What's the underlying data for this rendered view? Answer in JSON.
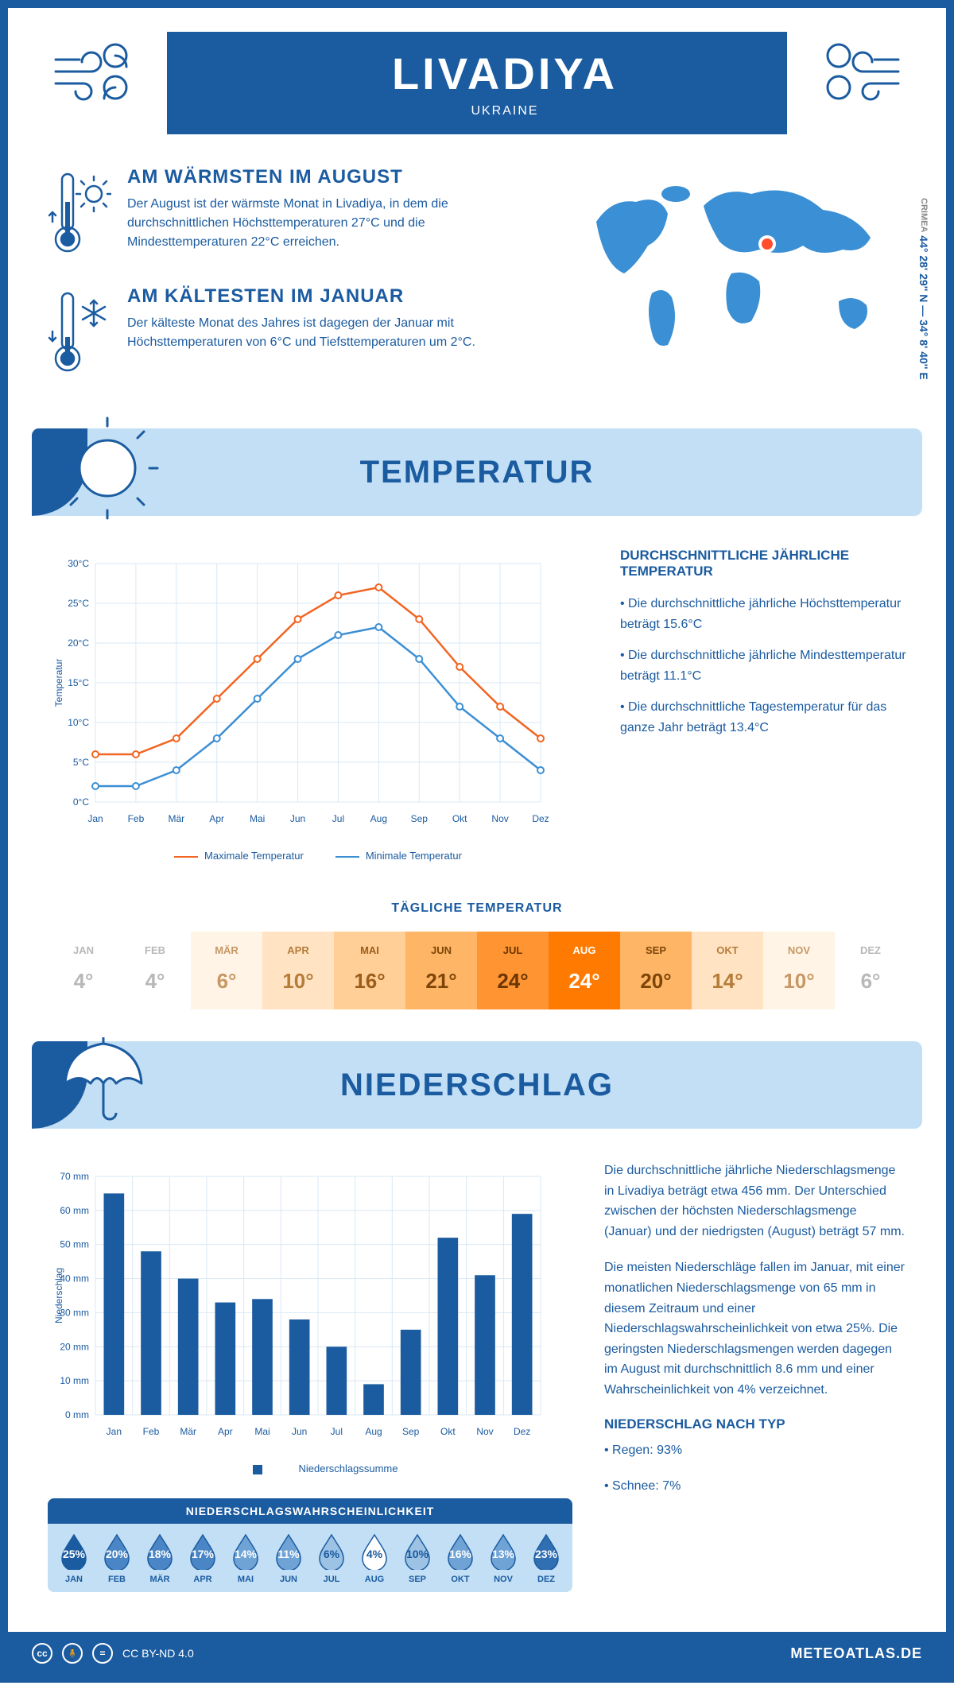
{
  "header": {
    "title": "LIVADIYA",
    "subtitle": "UKRAINE"
  },
  "coords": {
    "region": "CRIMEA",
    "text": "44° 28' 29'' N — 34° 8' 40'' E"
  },
  "warmest": {
    "title": "AM WÄRMSTEN IM AUGUST",
    "text": "Der August ist der wärmste Monat in Livadiya, in dem die durchschnittlichen Höchsttemperaturen 27°C und die Mindesttemperaturen 22°C erreichen."
  },
  "coldest": {
    "title": "AM KÄLTESTEN IM JANUAR",
    "text": "Der kälteste Monat des Jahres ist dagegen der Januar mit Höchsttemperaturen von 6°C und Tiefsttemperaturen um 2°C."
  },
  "section_temp": "TEMPERATUR",
  "section_precip": "NIEDERSCHLAG",
  "temp_facts": {
    "title": "DURCHSCHNITTLICHE JÄHRLICHE TEMPERATUR",
    "b1": "• Die durchschnittliche jährliche Höchsttemperatur beträgt 15.6°C",
    "b2": "• Die durchschnittliche jährliche Mindesttemperatur beträgt 11.1°C",
    "b3": "• Die durchschnittliche Tagestemperatur für das ganze Jahr beträgt 13.4°C"
  },
  "legend": {
    "max": "Maximale Temperatur",
    "min": "Minimale Temperatur"
  },
  "daily_title": "TÄGLICHE TEMPERATUR",
  "months": [
    "JAN",
    "FEB",
    "MÄR",
    "APR",
    "MAI",
    "JUN",
    "JUL",
    "AUG",
    "SEP",
    "OKT",
    "NOV",
    "DEZ"
  ],
  "months_lc": [
    "Jan",
    "Feb",
    "Mär",
    "Apr",
    "Mai",
    "Jun",
    "Jul",
    "Aug",
    "Sep",
    "Okt",
    "Nov",
    "Dez"
  ],
  "daily_temp": {
    "values": [
      "4°",
      "4°",
      "6°",
      "10°",
      "16°",
      "21°",
      "24°",
      "24°",
      "20°",
      "14°",
      "10°",
      "6°"
    ],
    "bg": [
      "#ffffff",
      "#ffffff",
      "#fff4e6",
      "#ffe3c2",
      "#ffcf97",
      "#ffb566",
      "#ff9433",
      "#ff7a00",
      "#ffb566",
      "#ffe3c2",
      "#fff4e6",
      "#ffffff"
    ],
    "txt": [
      "#b8b8b8",
      "#b8b8b8",
      "#c79865",
      "#b57c3a",
      "#9c5d1a",
      "#7d4608",
      "#6b3600",
      "#ffffff",
      "#7d4608",
      "#b57c3a",
      "#c79865",
      "#b8b8b8"
    ]
  },
  "temp_chart": {
    "ylabel": "Temperatur",
    "ymin": 0,
    "ymax": 30,
    "ystep": 5,
    "max_series": [
      6,
      6,
      8,
      13,
      18,
      23,
      26,
      27,
      23,
      17,
      12,
      8
    ],
    "min_series": [
      2,
      2,
      4,
      8,
      13,
      18,
      21,
      22,
      18,
      12,
      8,
      4
    ],
    "max_color": "#f26522",
    "min_color": "#3b8fd4",
    "grid_color": "#d9e8f5"
  },
  "precip_chart": {
    "ylabel": "Niederschlag",
    "legend": "Niederschlagssumme",
    "ymin": 0,
    "ymax": 70,
    "ystep": 10,
    "values": [
      65,
      48,
      40,
      33,
      34,
      28,
      20,
      9,
      25,
      52,
      41,
      59
    ],
    "bar_color": "#1b5ba0",
    "grid_color": "#d9e8f5"
  },
  "precip_text": {
    "p1": "Die durchschnittliche jährliche Niederschlagsmenge in Livadiya beträgt etwa 456 mm. Der Unterschied zwischen der höchsten Niederschlagsmenge (Januar) und der niedrigsten (August) beträgt 57 mm.",
    "p2": "Die meisten Niederschläge fallen im Januar, mit einer monatlichen Niederschlagsmenge von 65 mm in diesem Zeitraum und einer Niederschlagswahrscheinlichkeit von etwa 25%. Die geringsten Niederschlagsmengen werden dagegen im August mit durchschnittlich 8.6 mm und einer Wahrscheinlichkeit von 4% verzeichnet.",
    "type_title": "NIEDERSCHLAG NACH TYP",
    "rain": "• Regen: 93%",
    "snow": "• Schnee: 7%"
  },
  "prob": {
    "title": "NIEDERSCHLAGSWAHRSCHEINLICHKEIT",
    "values": [
      "25%",
      "20%",
      "18%",
      "17%",
      "14%",
      "11%",
      "6%",
      "4%",
      "10%",
      "16%",
      "13%",
      "23%"
    ],
    "fill": [
      "#1b5ba0",
      "#4a86c5",
      "#4a86c5",
      "#4a86c5",
      "#6fa3d6",
      "#6fa3d6",
      "#9cc2e4",
      "#ffffff",
      "#9cc2e4",
      "#6fa3d6",
      "#6fa3d6",
      "#2f6fb2"
    ],
    "text": [
      "#ffffff",
      "#ffffff",
      "#ffffff",
      "#ffffff",
      "#ffffff",
      "#ffffff",
      "#1b5ba0",
      "#1b5ba0",
      "#1b5ba0",
      "#ffffff",
      "#ffffff",
      "#ffffff"
    ]
  },
  "footer": {
    "license": "CC BY-ND 4.0",
    "site": "METEOATLAS.DE"
  }
}
